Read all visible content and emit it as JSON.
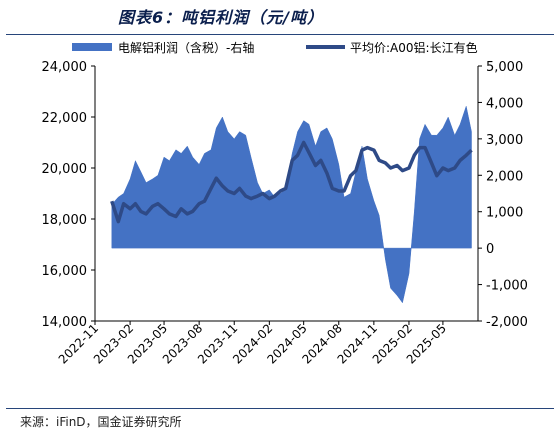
{
  "title": "图表6：吨铝利润（元/吨）",
  "source": "来源：iFinD，国金证券研究所",
  "colors": {
    "area": "#4472C4",
    "line": "#2E4A87",
    "axis": "#000000"
  },
  "chart_data": {
    "type": "area",
    "secondary_type": "line",
    "legend": [
      "电解铝利润（含税）-右轴",
      "平均价:A00铝:长江有色"
    ],
    "legend_position": "top",
    "grid": false,
    "x_ticks": [
      "2022-11",
      "2023-02",
      "2023-05",
      "2023-08",
      "2023-11",
      "2024-02",
      "2024-05",
      "2024-08",
      "2024-11",
      "2025-02",
      "2025-05"
    ],
    "left_axis": {
      "ticks": [
        "14,000",
        "16,000",
        "18,000",
        "20,000",
        "22,000",
        "24,000"
      ],
      "min": 14000,
      "max": 24000
    },
    "right_axis": {
      "ticks": [
        "-2,000",
        "-1,000",
        "0",
        "1,000",
        "2,000",
        "3,000",
        "4,000",
        "5,000"
      ],
      "min": -2000,
      "max": 5000
    },
    "series": [
      {
        "name": "电解铝利润（含税）-右轴",
        "type": "area",
        "axis": "right",
        "x": [
          "2022-12-15",
          "2023-01-01",
          "2023-01-15",
          "2023-02-01",
          "2023-02-15",
          "2023-03-01",
          "2023-03-15",
          "2023-04-01",
          "2023-04-15",
          "2023-05-01",
          "2023-05-15",
          "2023-06-01",
          "2023-06-15",
          "2023-07-01",
          "2023-07-15",
          "2023-08-01",
          "2023-08-15",
          "2023-09-01",
          "2023-09-15",
          "2023-10-01",
          "2023-10-15",
          "2023-11-01",
          "2023-11-15",
          "2023-12-01",
          "2023-12-15",
          "2024-01-01",
          "2024-01-15",
          "2024-02-01",
          "2024-02-15",
          "2024-03-01",
          "2024-03-15",
          "2024-04-01",
          "2024-04-15",
          "2024-05-01",
          "2024-05-15",
          "2024-06-01",
          "2024-06-15",
          "2024-07-01",
          "2024-07-15",
          "2024-08-01",
          "2024-08-15",
          "2024-09-01",
          "2024-09-15",
          "2024-10-01",
          "2024-10-15",
          "2024-11-01",
          "2024-11-15",
          "2024-12-01",
          "2024-12-15",
          "2025-01-01",
          "2025-01-15",
          "2025-02-01",
          "2025-02-15",
          "2025-03-01",
          "2025-03-15",
          "2025-04-01",
          "2025-04-15",
          "2025-05-01",
          "2025-05-15",
          "2025-06-01",
          "2025-06-15",
          "2025-07-01",
          "2025-07-15"
        ],
        "values": [
          1200,
          1400,
          1500,
          1900,
          2400,
          2100,
          1800,
          1900,
          2000,
          2500,
          2400,
          2700,
          2600,
          2800,
          2500,
          2300,
          2600,
          2700,
          3300,
          3600,
          3200,
          3000,
          3200,
          3100,
          2500,
          1800,
          1500,
          1600,
          1400,
          1500,
          1600,
          2600,
          3200,
          3500,
          3400,
          2800,
          3200,
          3300,
          3000,
          2300,
          1400,
          1500,
          2100,
          2800,
          1900,
          1300,
          900,
          -300,
          -1100,
          -1300,
          -1500,
          -700,
          1000,
          3000,
          3400,
          3100,
          3100,
          3300,
          3600,
          3100,
          3400,
          3900,
          3200
        ]
      },
      {
        "name": "平均价:A00铝:长江有色",
        "type": "line",
        "axis": "left",
        "x": [
          "2022-12-15",
          "2023-01-01",
          "2023-01-15",
          "2023-02-01",
          "2023-02-15",
          "2023-03-01",
          "2023-03-15",
          "2023-04-01",
          "2023-04-15",
          "2023-05-01",
          "2023-05-15",
          "2023-06-01",
          "2023-06-15",
          "2023-07-01",
          "2023-07-15",
          "2023-08-01",
          "2023-08-15",
          "2023-09-01",
          "2023-09-15",
          "2023-10-01",
          "2023-10-15",
          "2023-11-01",
          "2023-11-15",
          "2023-12-01",
          "2023-12-15",
          "2024-01-01",
          "2024-01-15",
          "2024-02-01",
          "2024-02-15",
          "2024-03-01",
          "2024-03-15",
          "2024-04-01",
          "2024-04-15",
          "2024-05-01",
          "2024-05-15",
          "2024-06-01",
          "2024-06-15",
          "2024-07-01",
          "2024-07-15",
          "2024-08-01",
          "2024-08-15",
          "2024-09-01",
          "2024-09-15",
          "2024-10-01",
          "2024-10-15",
          "2024-11-01",
          "2024-11-15",
          "2024-12-01",
          "2024-12-15",
          "2025-01-01",
          "2025-01-15",
          "2025-02-01",
          "2025-02-15",
          "2025-03-01",
          "2025-03-15",
          "2025-04-01",
          "2025-04-15",
          "2025-05-01",
          "2025-05-15",
          "2025-06-01",
          "2025-06-15",
          "2025-07-01",
          "2025-07-15"
        ],
        "values": [
          18700,
          17900,
          18600,
          18400,
          18600,
          18300,
          18200,
          18500,
          18600,
          18400,
          18200,
          18100,
          18400,
          18200,
          18300,
          18600,
          18700,
          19200,
          19600,
          19300,
          19100,
          19000,
          19200,
          18900,
          18800,
          18900,
          19000,
          18800,
          18900,
          19100,
          19200,
          20300,
          20500,
          21000,
          20600,
          20100,
          20300,
          19800,
          19200,
          19100,
          19100,
          19700,
          19900,
          20700,
          20800,
          20700,
          20300,
          20200,
          20000,
          20100,
          19900,
          20000,
          20500,
          20800,
          20800,
          20200,
          19700,
          20000,
          19900,
          20000,
          20300,
          20500,
          20700
        ]
      }
    ]
  }
}
